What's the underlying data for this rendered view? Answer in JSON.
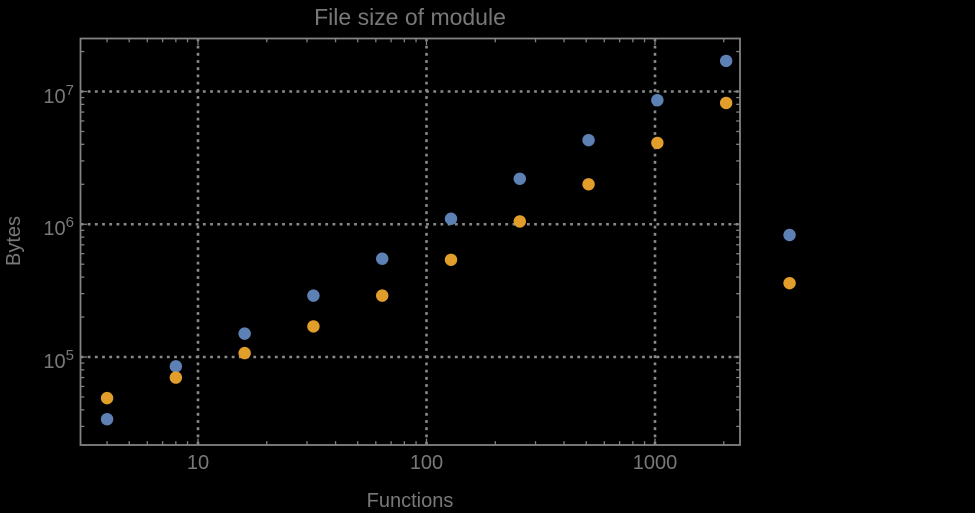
{
  "colors": {
    "background": "#000000",
    "frame": "#828282",
    "grid": "#8a8a8a",
    "text": "#787878",
    "series_blue": "#5E81B5",
    "series_orange": "#E19E2B"
  },
  "chart_data": {
    "type": "scatter",
    "title": "File size of module",
    "xlabel": "Functions",
    "ylabel": "Bytes",
    "x_scale": "log",
    "y_scale": "log",
    "grid": "dotted lines at decades only",
    "legend": "none",
    "x_tick_labels": [
      "10",
      "100",
      "1000"
    ],
    "x_tick_values": [
      10,
      100,
      1000
    ],
    "y_tick_labels": [
      {
        "base": "10",
        "exp": "5"
      },
      {
        "base": "10",
        "exp": "6"
      },
      {
        "base": "10",
        "exp": "7"
      }
    ],
    "y_tick_values": [
      100000,
      1000000,
      10000000
    ],
    "xlim": [
      3.06,
      2354
    ],
    "ylim": [
      21700,
      25100000
    ],
    "note": "last pair of points (x=3880) falls outside the right frame edge and is drawn unclipped",
    "x": [
      4,
      8,
      16,
      32,
      64,
      128,
      256,
      512,
      1024,
      2048,
      3880
    ],
    "series": [
      {
        "name": "blue",
        "color": "#5E81B5",
        "values": [
          34000,
          85000,
          150000,
          290000,
          550000,
          1100000,
          2200000,
          4300000,
          8600000,
          17000000,
          830000
        ]
      },
      {
        "name": "orange",
        "color": "#E19E2B",
        "values": [
          49000,
          70000,
          107000,
          170000,
          290000,
          540000,
          1050000,
          2000000,
          4100000,
          8200000,
          360000
        ]
      }
    ]
  }
}
